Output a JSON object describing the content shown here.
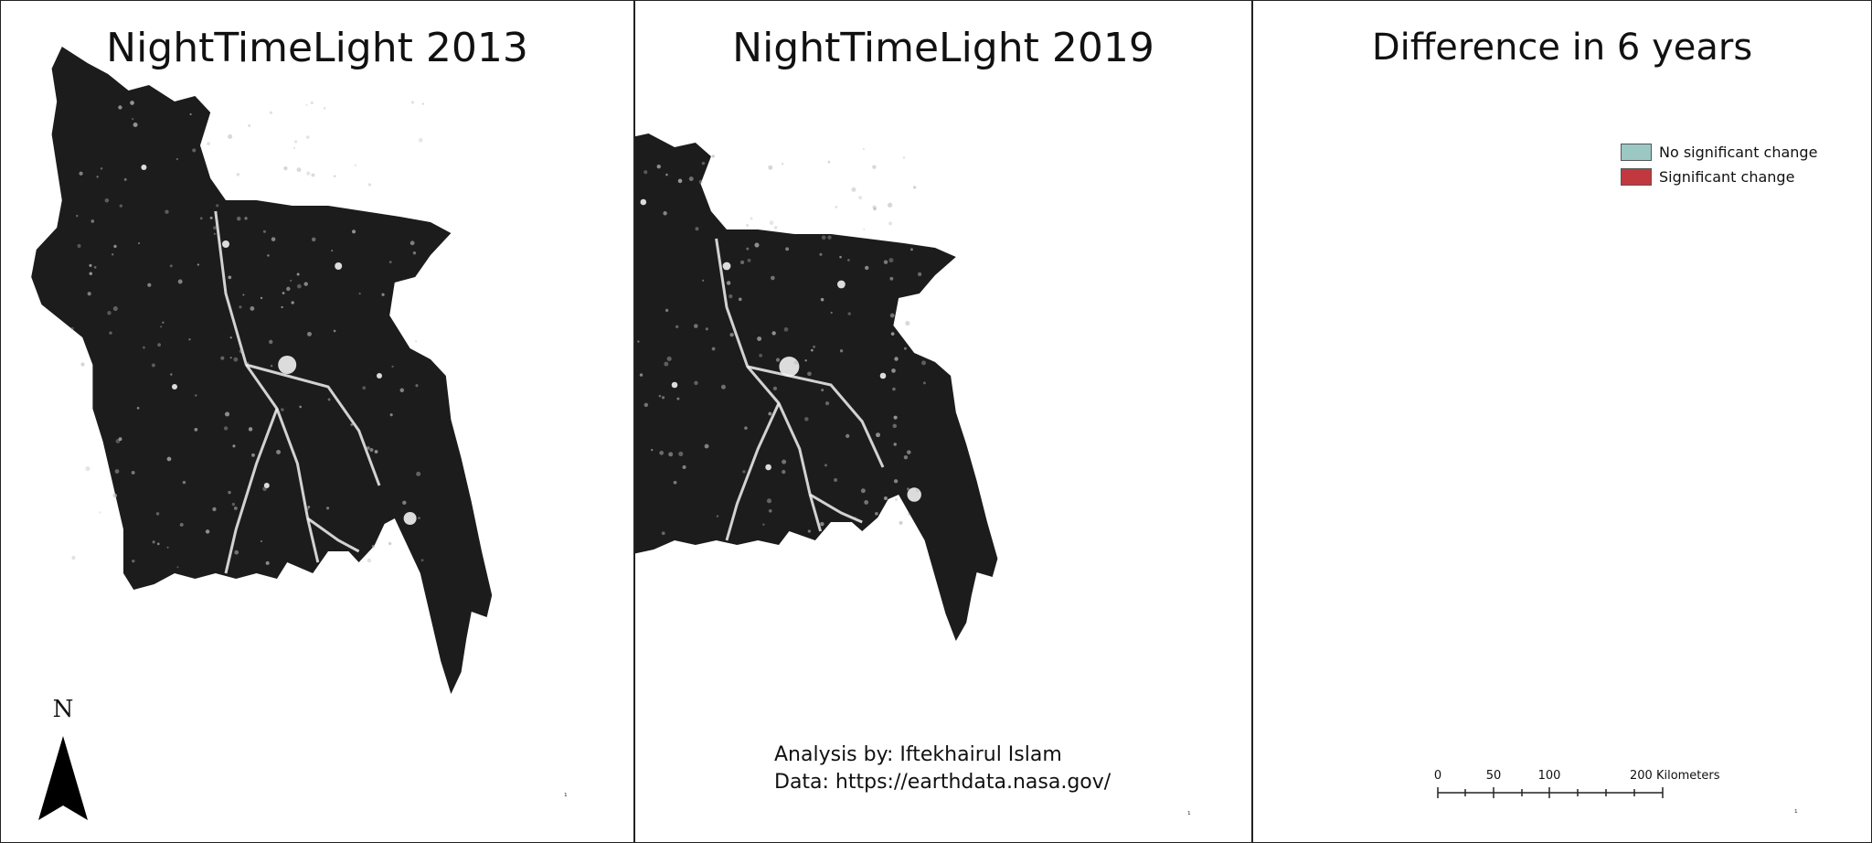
{
  "panels": [
    {
      "title": "NightTimeLight 2013"
    },
    {
      "title": "NightTimeLight 2019"
    },
    {
      "title": "Difference in 6 years"
    }
  ],
  "north_arrow": {
    "letter": "N"
  },
  "credits": {
    "analysis": "Analysis by: Iftekhairul Islam",
    "data": "Data: https://earthdata.nasa.gov/"
  },
  "legend": {
    "items": [
      {
        "label": "No significant change",
        "color": "#9cc8c3"
      },
      {
        "label": "Significant change",
        "color": "#c1393f"
      }
    ]
  },
  "scale_bar": {
    "labels": [
      "0",
      "50",
      "100",
      "200 Kilometers"
    ],
    "values_km": [
      0,
      50,
      100,
      200
    ]
  },
  "colors": {
    "night_land": "#1c1c1c",
    "light": "#f2f2f2",
    "diff_land": "#9cc8c3",
    "diff_change": "#c1393f",
    "border": "#555555"
  },
  "tiny_marks": [
    "¹",
    "¹",
    "¹"
  ]
}
